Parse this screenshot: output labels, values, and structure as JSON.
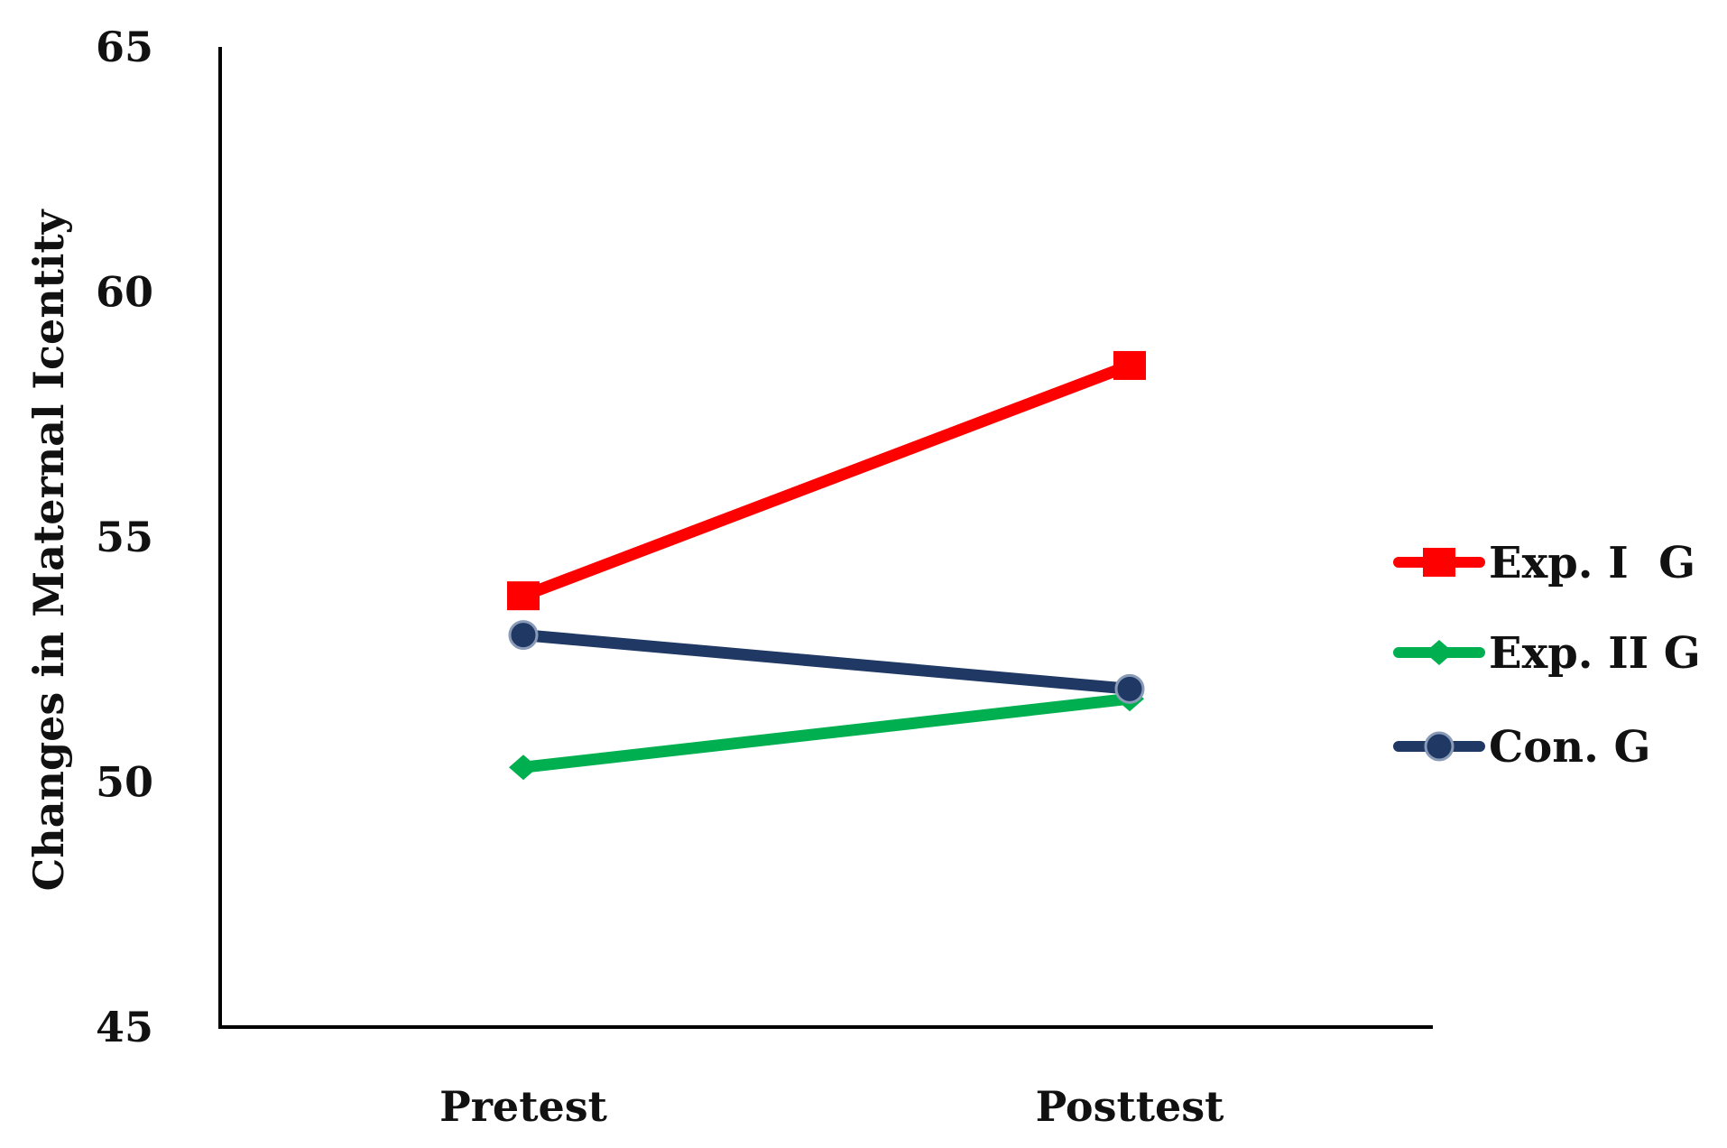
{
  "chart_data": {
    "type": "line",
    "categories": [
      "Pretest",
      "Posttest"
    ],
    "series": [
      {
        "name": "Exp. I  G",
        "values": [
          53.8,
          58.5
        ],
        "color": "#ff0000",
        "marker": "square"
      },
      {
        "name": "Exp. II G",
        "values": [
          50.3,
          51.7
        ],
        "color": "#00b050",
        "marker": "diamond"
      },
      {
        "name": "Con. G",
        "values": [
          53.0,
          51.9
        ],
        "color": "#1f3864",
        "marker": "circle"
      }
    ],
    "ylabel": "Changes in Maternal Icentity",
    "xlabel": "",
    "ylim": [
      45,
      65
    ],
    "yticks": [
      "45",
      "50",
      "55",
      "60",
      "65"
    ],
    "grid": false,
    "legend_position": "right"
  }
}
